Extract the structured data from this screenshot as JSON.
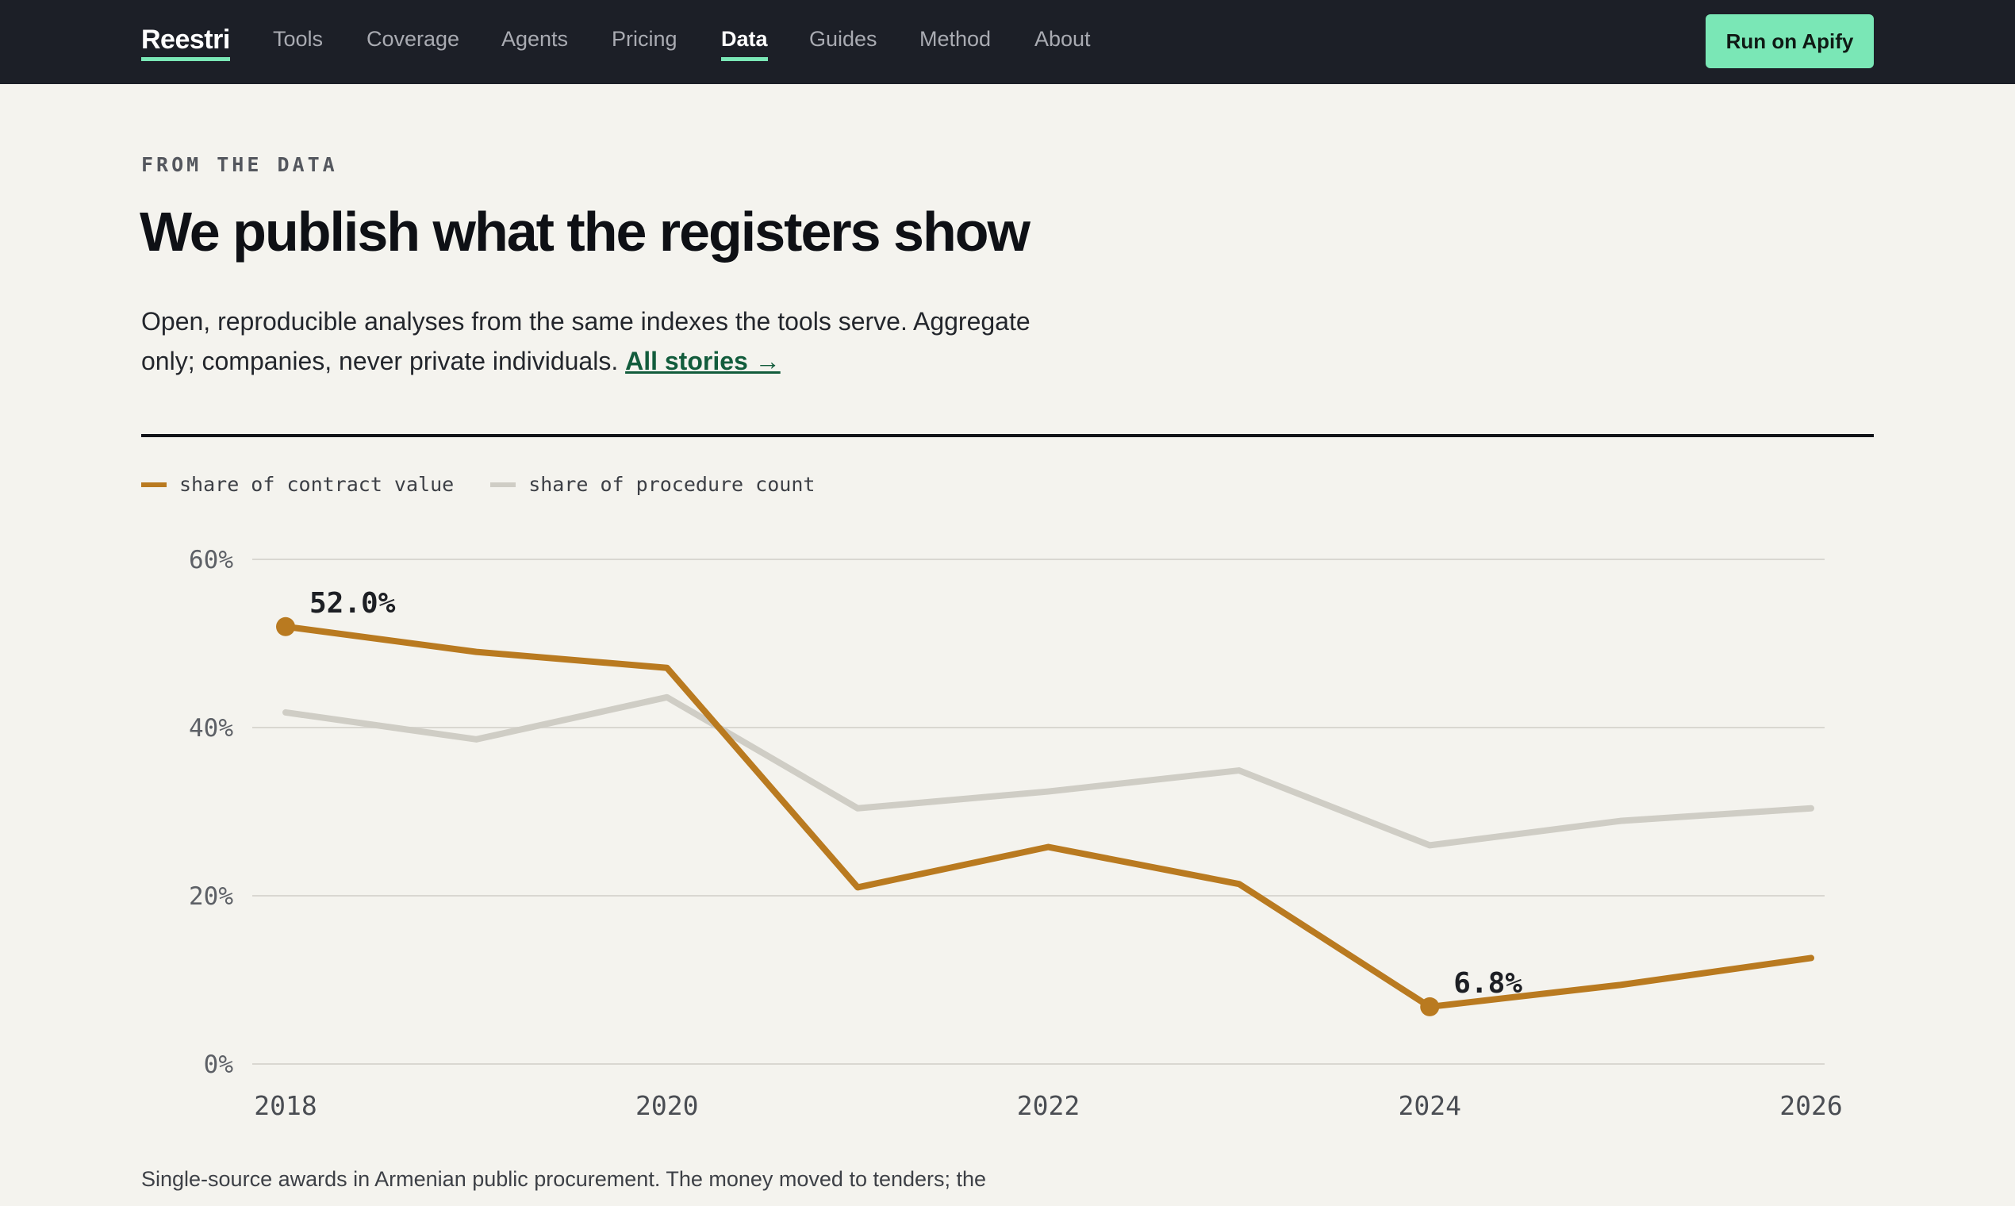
{
  "nav": {
    "brand": "Reestri",
    "links": [
      {
        "label": "Tools",
        "active": false
      },
      {
        "label": "Coverage",
        "active": false
      },
      {
        "label": "Agents",
        "active": false
      },
      {
        "label": "Pricing",
        "active": false
      },
      {
        "label": "Data",
        "active": true
      },
      {
        "label": "Guides",
        "active": false
      },
      {
        "label": "Method",
        "active": false
      },
      {
        "label": "About",
        "active": false
      }
    ],
    "cta_label": "Run on Apify"
  },
  "hero": {
    "eyebrow": "FROM THE DATA",
    "title": "We publish what the registers show",
    "lede": "Open, reproducible analyses from the same indexes the tools serve. Aggregate only; companies, never private individuals.",
    "link_label": "All stories →"
  },
  "caption": "Single-source awards in Armenian public procurement. The money moved to tenders; the",
  "colors": {
    "accent": "#7ae7b6",
    "series_primary": "#b97a20",
    "series_secondary": "#cfcdc5",
    "nav_bg": "#1c1f27",
    "page_bg": "#f4f3ee"
  },
  "chart_data": {
    "type": "line",
    "x": [
      2018,
      2019,
      2020,
      2021,
      2022,
      2023,
      2024,
      2025,
      2026
    ],
    "series": [
      {
        "name": "share of contract value",
        "values": [
          52.0,
          49.0,
          47.1,
          21.0,
          25.8,
          21.4,
          6.8,
          9.4,
          12.6
        ]
      },
      {
        "name": "share of procedure count",
        "values": [
          41.8,
          38.6,
          43.6,
          30.4,
          32.4,
          34.9,
          26.0,
          28.9,
          30.4
        ]
      }
    ],
    "annotations": [
      {
        "series": 0,
        "x": 2018,
        "label": "52.0%"
      },
      {
        "series": 0,
        "x": 2024,
        "label": "6.8%"
      }
    ],
    "xticks": [
      "2018",
      "2020",
      "2022",
      "2024",
      "2026"
    ],
    "yticks": [
      "0%",
      "20%",
      "40%",
      "60%"
    ],
    "ylim": [
      0,
      60
    ],
    "xlim": [
      2018,
      2026
    ],
    "grid": true,
    "legend_position": "top-left"
  }
}
